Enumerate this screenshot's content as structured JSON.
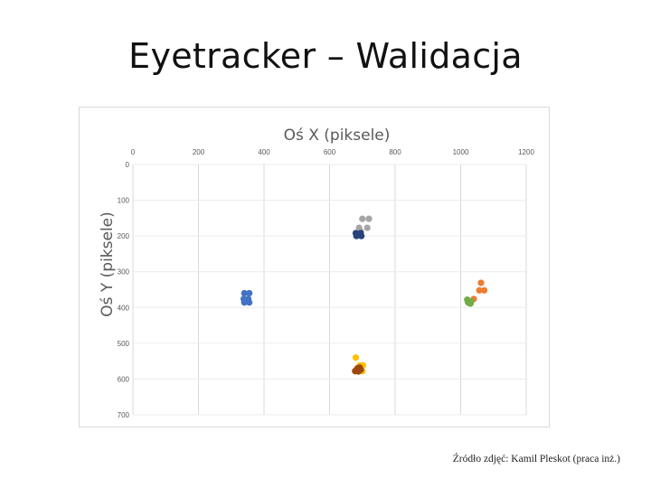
{
  "slide": {
    "title": "Eyetracker – Walidacja",
    "caption": "Źródło zdjęć: Kamil Pleskot (praca inż.)"
  },
  "chart_data": {
    "type": "scatter",
    "title": "",
    "xlabel": "Oś X (piksele)",
    "ylabel": "Oś Y (piksele)",
    "xlim": [
      0,
      1200
    ],
    "ylim": [
      0,
      700
    ],
    "y_inverted": true,
    "x_axis_position": "top",
    "x_ticks": [
      0,
      200,
      400,
      600,
      800,
      1000,
      1200
    ],
    "y_ticks": [
      0,
      100,
      200,
      300,
      400,
      500,
      600,
      700
    ],
    "x_tick_labels": [
      "0",
      "200",
      "400",
      "600",
      "800",
      "1000",
      "1200"
    ],
    "y_tick_labels": [
      "0",
      "100",
      "200",
      "300",
      "400",
      "500",
      "600",
      "700"
    ],
    "grid": "vertical",
    "series": [
      {
        "color": "#a5a5a5",
        "points": [
          [
            700,
            152
          ],
          [
            720,
            152
          ],
          [
            690,
            177
          ],
          [
            715,
            177
          ],
          [
            695,
            187
          ]
        ]
      },
      {
        "color": "#264478",
        "points": [
          [
            680,
            192
          ],
          [
            695,
            192
          ],
          [
            682,
            200
          ],
          [
            697,
            200
          ],
          [
            690,
            197
          ]
        ]
      },
      {
        "color": "#4472c4",
        "points": [
          [
            340,
            360
          ],
          [
            355,
            360
          ],
          [
            338,
            376
          ],
          [
            352,
            376
          ],
          [
            340,
            386
          ],
          [
            355,
            386
          ],
          [
            347,
            380
          ]
        ]
      },
      {
        "color": "#ed7d31",
        "points": [
          [
            1062,
            331
          ],
          [
            1057,
            352
          ],
          [
            1072,
            352
          ],
          [
            1040,
            376
          ]
        ]
      },
      {
        "color": "#70ad47",
        "points": [
          [
            1020,
            378
          ],
          [
            1032,
            383
          ],
          [
            1024,
            387
          ],
          [
            1030,
            389
          ],
          [
            1022,
            384
          ]
        ]
      },
      {
        "color": "#ffc000",
        "points": [
          [
            680,
            540
          ],
          [
            692,
            562
          ],
          [
            702,
            562
          ],
          [
            680,
            575
          ],
          [
            700,
            578
          ]
        ]
      },
      {
        "color": "#9e480e",
        "points": [
          [
            685,
            570
          ],
          [
            695,
            574
          ],
          [
            678,
            578
          ],
          [
            688,
            579
          ],
          [
            692,
            568
          ]
        ]
      }
    ]
  }
}
